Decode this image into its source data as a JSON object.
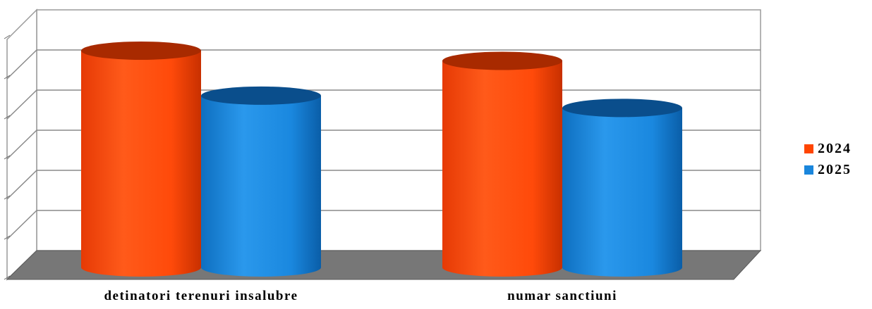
{
  "chart_data": {
    "type": "bar",
    "style": "3d-cylinder",
    "categories": [
      "detinatori terenuri insalubre",
      "numar sanctiuni"
    ],
    "series": [
      {
        "name": "2024",
        "color": "#FF4500",
        "values": [
          5.3,
          5.05
        ]
      },
      {
        "name": "2025",
        "color": "#1A86DC",
        "values": [
          4.2,
          3.9
        ]
      }
    ],
    "ylim": [
      0,
      6
    ],
    "grid": true,
    "legend_position": "right",
    "title": "",
    "xlabel": "",
    "ylabel": ""
  }
}
